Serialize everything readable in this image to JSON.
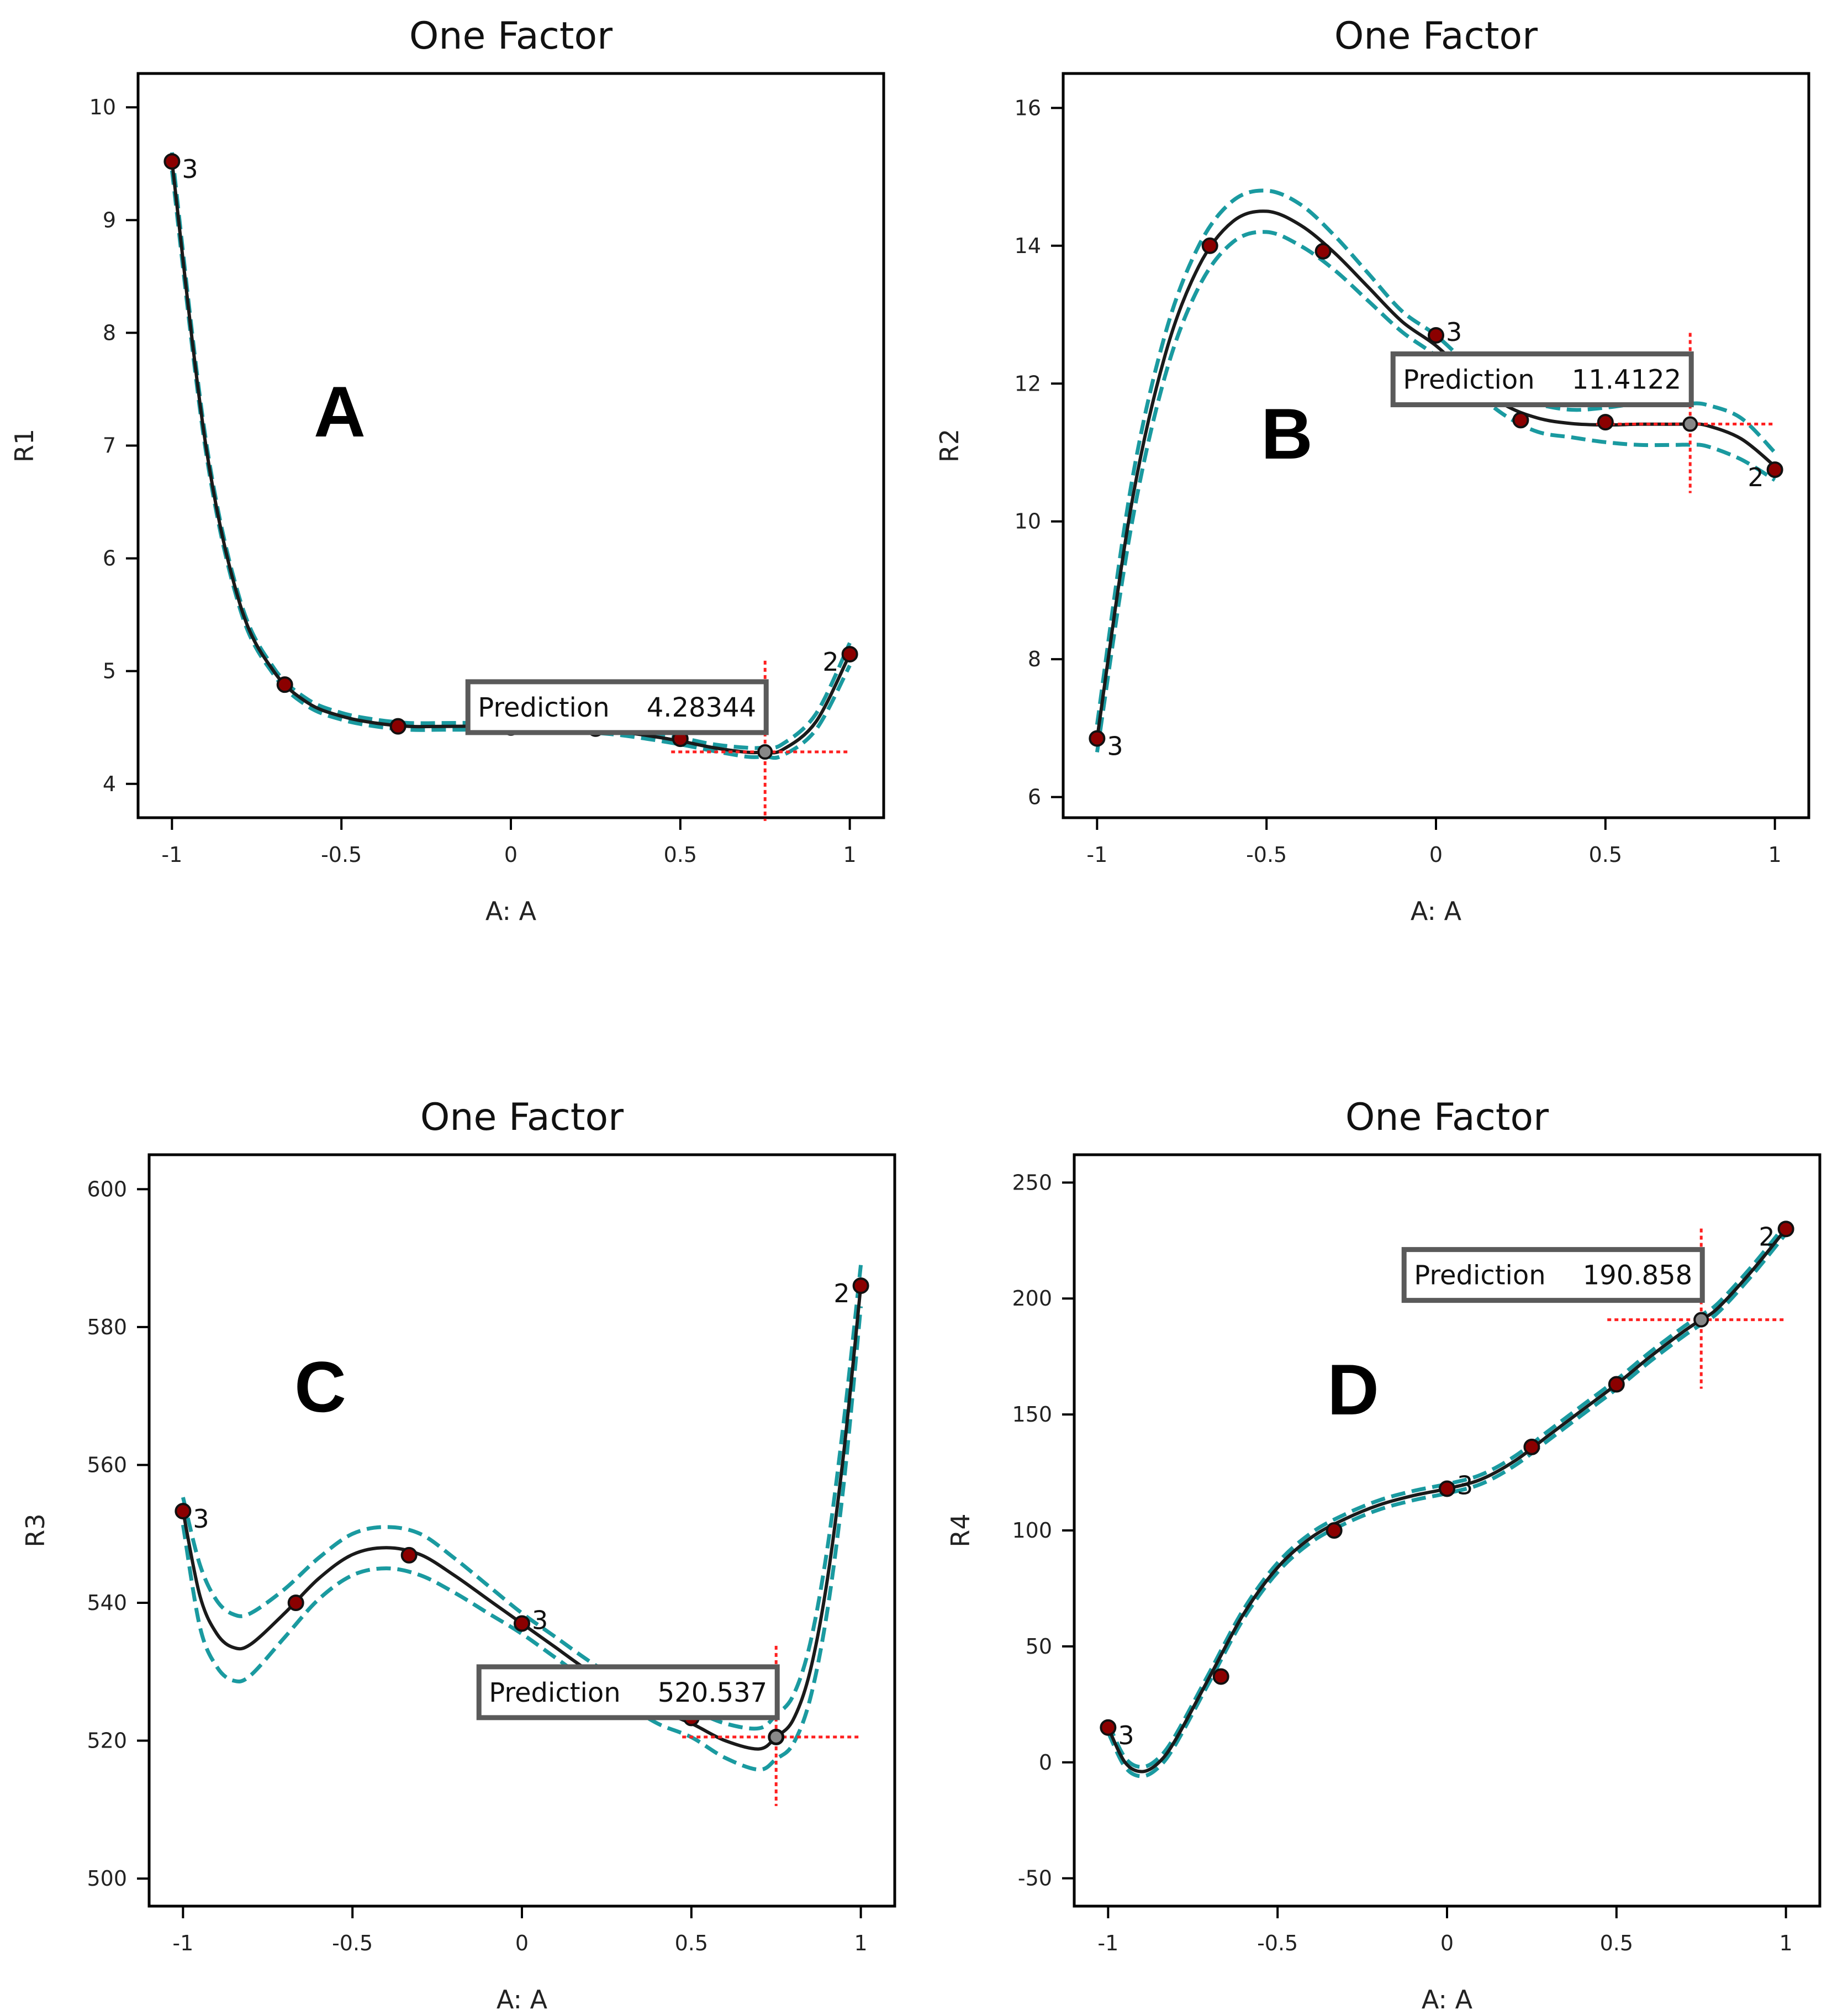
{
  "chart_data": [
    {
      "type": "line",
      "panel_label": "A",
      "title": "One Factor",
      "xlabel": "A: A",
      "ylabel": "R1",
      "xlim": [
        -1.1,
        1.1
      ],
      "ylim": [
        3.7,
        10.3
      ],
      "x_ticks": [
        -1,
        -0.5,
        0,
        0.5,
        1
      ],
      "x_tick_labels": [
        "-1",
        "-0.5",
        "0",
        "0.5",
        "1"
      ],
      "y_ticks": [
        4,
        5,
        6,
        7,
        8,
        9,
        10
      ],
      "y_tick_labels": [
        "4",
        "5",
        "6",
        "7",
        "8",
        "9",
        "10"
      ],
      "points": [
        {
          "x": -1,
          "y": 9.52,
          "count": "3"
        },
        {
          "x": -0.667,
          "y": 4.88,
          "count": ""
        },
        {
          "x": -0.333,
          "y": 4.51,
          "count": ""
        },
        {
          "x": 0,
          "y": 4.5,
          "count": "3"
        },
        {
          "x": 0.25,
          "y": 4.49,
          "count": ""
        },
        {
          "x": 0.5,
          "y": 4.4,
          "count": ""
        },
        {
          "x": 1,
          "y": 5.15,
          "count": "2"
        }
      ],
      "fit": {
        "x": [
          -1,
          -0.9,
          -0.8,
          -0.7,
          -0.6,
          -0.5,
          -0.4,
          -0.3,
          -0.2,
          -0.1,
          0,
          0.1,
          0.2,
          0.3,
          0.4,
          0.5,
          0.6,
          0.7,
          0.75,
          0.8,
          0.9,
          1
        ],
        "y": [
          9.52,
          7.0,
          5.6,
          5.0,
          4.72,
          4.6,
          4.54,
          4.51,
          4.51,
          4.51,
          4.5,
          4.5,
          4.49,
          4.47,
          4.43,
          4.38,
          4.32,
          4.28,
          4.283,
          4.3,
          4.55,
          5.15
        ]
      },
      "ci_width": [
        0.08,
        0.05,
        0.04,
        0.03,
        0.03,
        0.03,
        0.03,
        0.03,
        0.03,
        0.03,
        0.03,
        0.03,
        0.03,
        0.03,
        0.03,
        0.03,
        0.03,
        0.04,
        0.04,
        0.05,
        0.07,
        0.1
      ],
      "prediction": {
        "label": "Prediction",
        "x": 0.75,
        "value": "4.28344",
        "y": 4.28344
      }
    },
    {
      "type": "line",
      "panel_label": "B",
      "title": "One Factor",
      "xlabel": "A: A",
      "ylabel": "R2",
      "xlim": [
        -1.1,
        1.1
      ],
      "ylim": [
        5.7,
        16.5
      ],
      "x_ticks": [
        -1,
        -0.5,
        0,
        0.5,
        1
      ],
      "x_tick_labels": [
        "-1",
        "-0.5",
        "0",
        "0.5",
        "1"
      ],
      "y_ticks": [
        6,
        8,
        10,
        12,
        14,
        16
      ],
      "y_tick_labels": [
        "6",
        "8",
        "10",
        "12",
        "14",
        "16"
      ],
      "points": [
        {
          "x": -1,
          "y": 6.85,
          "count": "3"
        },
        {
          "x": -0.667,
          "y": 14.0,
          "count": ""
        },
        {
          "x": -0.333,
          "y": 13.92,
          "count": ""
        },
        {
          "x": 0,
          "y": 12.7,
          "count": "3"
        },
        {
          "x": 0.25,
          "y": 11.47,
          "count": ""
        },
        {
          "x": 0.5,
          "y": 11.44,
          "count": ""
        },
        {
          "x": 1,
          "y": 10.75,
          "count": "2"
        }
      ],
      "fit": {
        "x": [
          -1,
          -0.9,
          -0.8,
          -0.7,
          -0.6,
          -0.5,
          -0.4,
          -0.3,
          -0.2,
          -0.1,
          0,
          0.1,
          0.2,
          0.3,
          0.4,
          0.5,
          0.6,
          0.7,
          0.75,
          0.8,
          0.9,
          1
        ],
        "y": [
          6.85,
          10.2,
          12.4,
          13.7,
          14.35,
          14.5,
          14.3,
          13.9,
          13.4,
          12.9,
          12.55,
          12.1,
          11.7,
          11.5,
          11.42,
          11.4,
          11.41,
          11.41,
          11.4122,
          11.39,
          11.2,
          10.8
        ]
      },
      "ci_width": [
        0.2,
        0.3,
        0.3,
        0.3,
        0.3,
        0.3,
        0.3,
        0.25,
        0.2,
        0.15,
        0.15,
        0.15,
        0.15,
        0.2,
        0.2,
        0.25,
        0.3,
        0.3,
        0.3,
        0.3,
        0.3,
        0.2
      ],
      "prediction": {
        "label": "Prediction",
        "x": 0.75,
        "value": "11.4122",
        "y": 11.4122
      }
    },
    {
      "type": "line",
      "panel_label": "C",
      "title": "One Factor",
      "xlabel": "A: A",
      "ylabel": "R3",
      "xlim": [
        -1.1,
        1.1
      ],
      "ylim": [
        496,
        605
      ],
      "x_ticks": [
        -1,
        -0.5,
        0,
        0.5,
        1
      ],
      "x_tick_labels": [
        "-1",
        "-0.5",
        "0",
        "0.5",
        "1"
      ],
      "y_ticks": [
        500,
        520,
        540,
        560,
        580,
        600
      ],
      "y_tick_labels": [
        "500",
        "520",
        "540",
        "560",
        "580",
        "600"
      ],
      "points": [
        {
          "x": -1,
          "y": 553.3,
          "count": "3"
        },
        {
          "x": -0.667,
          "y": 540.0,
          "count": ""
        },
        {
          "x": -0.333,
          "y": 546.9,
          "count": ""
        },
        {
          "x": 0,
          "y": 537.0,
          "count": "3"
        },
        {
          "x": 0.5,
          "y": 523.3,
          "count": ""
        },
        {
          "x": 0.75,
          "y": 520.537,
          "count": ""
        },
        {
          "x": 1,
          "y": 586.0,
          "count": "2"
        }
      ],
      "fit": {
        "x": [
          -1,
          -0.95,
          -0.9,
          -0.85,
          -0.8,
          -0.7,
          -0.6,
          -0.5,
          -0.4,
          -0.3,
          -0.2,
          -0.1,
          0,
          0.1,
          0.2,
          0.3,
          0.4,
          0.5,
          0.6,
          0.7,
          0.75,
          0.8,
          0.85,
          0.9,
          0.95,
          1
        ],
        "y": [
          553.3,
          541.0,
          535.5,
          533.5,
          534.0,
          538.5,
          543.5,
          547.0,
          548.0,
          547.0,
          544.0,
          540.5,
          537.0,
          533.5,
          530.0,
          527.0,
          524.5,
          522.5,
          520.0,
          518.8,
          520.537,
          523.0,
          530.0,
          543.0,
          562.0,
          586.0
        ]
      },
      "ci_width": [
        2.0,
        4.5,
        4.8,
        4.8,
        4.5,
        3.5,
        3.0,
        3.0,
        3.0,
        3.0,
        2.5,
        2.0,
        1.5,
        1.5,
        1.5,
        1.5,
        2.0,
        2.0,
        2.5,
        3.0,
        3.2,
        3.5,
        4.0,
        4.5,
        4.5,
        3.0
      ],
      "prediction": {
        "label": "Prediction",
        "x": 0.75,
        "value": "520.537",
        "y": 520.537
      }
    },
    {
      "type": "line",
      "panel_label": "D",
      "title": "One Factor",
      "xlabel": "A: A",
      "ylabel": "R4",
      "xlim": [
        -1.1,
        1.1
      ],
      "ylim": [
        -62,
        262
      ],
      "x_ticks": [
        -1,
        -0.5,
        0,
        0.5,
        1
      ],
      "x_tick_labels": [
        "-1",
        "-0.5",
        "0",
        "0.5",
        "1"
      ],
      "y_ticks": [
        -50,
        0,
        50,
        100,
        150,
        200,
        250
      ],
      "y_tick_labels": [
        "-50",
        "0",
        "50",
        "100",
        "150",
        "200",
        "250"
      ],
      "points": [
        {
          "x": -1,
          "y": 15,
          "count": "3"
        },
        {
          "x": -0.667,
          "y": 37,
          "count": ""
        },
        {
          "x": -0.333,
          "y": 100,
          "count": ""
        },
        {
          "x": 0,
          "y": 118,
          "count": "3"
        },
        {
          "x": 0.25,
          "y": 136,
          "count": ""
        },
        {
          "x": 0.5,
          "y": 163,
          "count": ""
        },
        {
          "x": 1,
          "y": 230,
          "count": "2"
        }
      ],
      "fit": {
        "x": [
          -1,
          -0.95,
          -0.9,
          -0.85,
          -0.8,
          -0.7,
          -0.6,
          -0.5,
          -0.4,
          -0.3,
          -0.2,
          -0.1,
          0,
          0.1,
          0.2,
          0.3,
          0.4,
          0.5,
          0.6,
          0.7,
          0.75,
          0.8,
          0.9,
          1
        ],
        "y": [
          15,
          0,
          -4,
          0,
          10,
          37,
          64,
          84,
          97,
          105,
          111,
          115,
          118,
          122,
          130,
          141,
          152,
          163,
          175,
          186,
          190.858,
          196,
          212,
          230
        ]
      },
      "ci_width": [
        2,
        2,
        2,
        2,
        2,
        2,
        2,
        2,
        2,
        2,
        2,
        2,
        2,
        2,
        2,
        2,
        2,
        2,
        2,
        2,
        2,
        2,
        2,
        2
      ],
      "prediction": {
        "label": "Prediction",
        "x": 0.75,
        "value": "190.858",
        "y": 190.858
      }
    }
  ]
}
